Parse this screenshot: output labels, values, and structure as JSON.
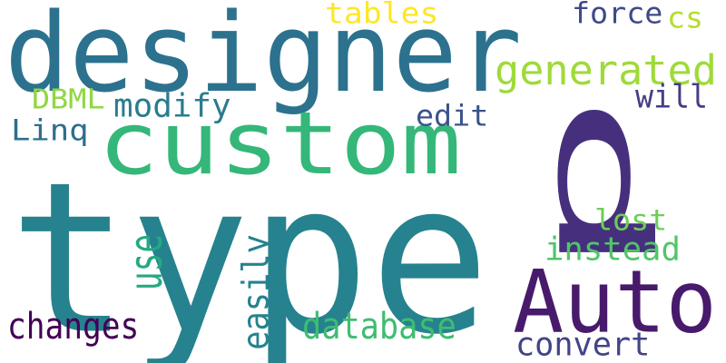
{
  "words": [
    {
      "text": "type",
      "color": "#26828e",
      "vertical": false
    },
    {
      "text": "designer",
      "color": "#2c728e",
      "vertical": false
    },
    {
      "text": "custom",
      "color": "#35b779",
      "vertical": false
    },
    {
      "text": "p",
      "color": "#46307e",
      "vertical": true
    },
    {
      "text": "Auto",
      "color": "#481a6c",
      "vertical": false
    },
    {
      "text": "generated",
      "color": "#9fda3a",
      "vertical": false
    },
    {
      "text": "tables",
      "color": "#fde725",
      "vertical": false
    },
    {
      "text": "force",
      "color": "#3e4989",
      "vertical": false
    },
    {
      "text": "cs",
      "color": "#b5de2b",
      "vertical": false
    },
    {
      "text": "will",
      "color": "#433e85",
      "vertical": false
    },
    {
      "text": "DBML",
      "color": "#90d743",
      "vertical": false
    },
    {
      "text": "modify",
      "color": "#287c8e",
      "vertical": false
    },
    {
      "text": "Linq",
      "color": "#2e6e8e",
      "vertical": false
    },
    {
      "text": "edit",
      "color": "#3b528b",
      "vertical": false
    },
    {
      "text": "lost",
      "color": "#6ece58",
      "vertical": false
    },
    {
      "text": "instead",
      "color": "#52c569",
      "vertical": false
    },
    {
      "text": "use",
      "color": "#23a983",
      "vertical": true
    },
    {
      "text": "easily",
      "color": "#25838e",
      "vertical": true
    },
    {
      "text": "changes",
      "color": "#440154",
      "vertical": false
    },
    {
      "text": "database",
      "color": "#3fbc73",
      "vertical": false
    },
    {
      "text": "convert",
      "color": "#414487",
      "vertical": false
    }
  ]
}
